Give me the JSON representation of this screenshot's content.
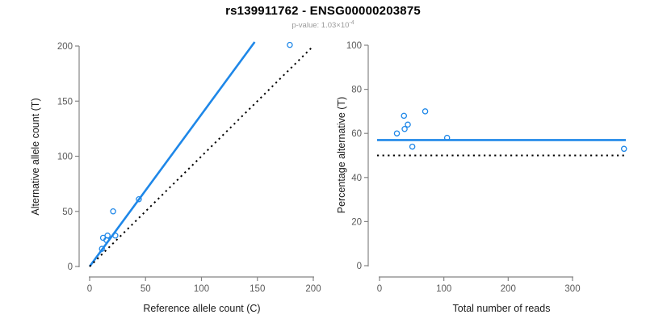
{
  "header": {
    "title": "rs139911762 - ENSG00000203875",
    "p_value_label": "p-value: ",
    "p_value_base": "1.03×10",
    "p_value_exponent": "-4"
  },
  "colors": {
    "accent_blue": "#1E87E8",
    "reference_black": "#000000",
    "axis_line": "#858585",
    "tick_label": "#5a5a5a",
    "axis_title": "#1a1a1a",
    "subtitle_gray": "#9a9a9a"
  },
  "chart_data": [
    {
      "id": "allele-count-scatter",
      "type": "scatter",
      "xlabel": "Reference allele count (C)",
      "ylabel": "Alternative allele count (T)",
      "xlim": [
        0,
        200
      ],
      "ylim": [
        0,
        200
      ],
      "xticks": [
        0,
        50,
        100,
        150,
        200
      ],
      "yticks": [
        0,
        50,
        100,
        150,
        200
      ],
      "grid": false,
      "legend": null,
      "points": [
        [
          11,
          16
        ],
        [
          12,
          26
        ],
        [
          15,
          24
        ],
        [
          16,
          28
        ],
        [
          23,
          28
        ],
        [
          21,
          50
        ],
        [
          44,
          61
        ],
        [
          179,
          201
        ]
      ],
      "lines": [
        {
          "name": "fitted-ratio-line",
          "kind": "abline",
          "slope": 1.38,
          "intercept": 0,
          "style": "solid",
          "color_key": "accent_blue"
        },
        {
          "name": "identity-line",
          "kind": "abline",
          "slope": 1.0,
          "intercept": 0,
          "style": "dotted",
          "color_key": "reference_black"
        }
      ]
    },
    {
      "id": "percentage-alternative-scatter",
      "type": "scatter",
      "xlabel": "Total number of reads",
      "ylabel": "Percentage alternative (T)",
      "xlim": [
        0,
        380
      ],
      "ylim": [
        0,
        100
      ],
      "xticks": [
        0,
        100,
        200,
        300
      ],
      "yticks": [
        0,
        20,
        40,
        60,
        80,
        100
      ],
      "grid": false,
      "legend": null,
      "points": [
        [
          27,
          60
        ],
        [
          38,
          68
        ],
        [
          39,
          62
        ],
        [
          44,
          64
        ],
        [
          51,
          54
        ],
        [
          71,
          70
        ],
        [
          105,
          58
        ],
        [
          380,
          53
        ]
      ],
      "lines": [
        {
          "name": "mean-percentage-line",
          "kind": "hline",
          "y": 57,
          "style": "solid",
          "color_key": "accent_blue"
        },
        {
          "name": "expected-percentage-line",
          "kind": "hline",
          "y": 50,
          "style": "dotted",
          "color_key": "reference_black"
        }
      ]
    }
  ]
}
